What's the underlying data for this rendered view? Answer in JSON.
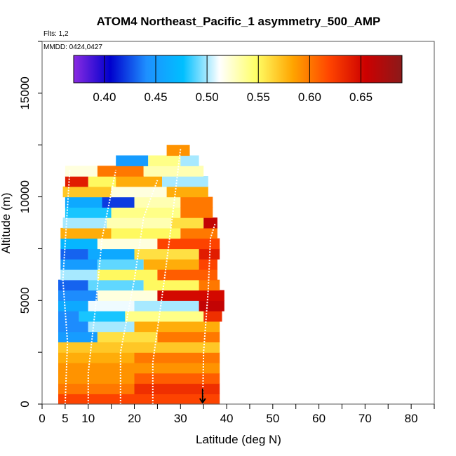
{
  "chart_data": {
    "type": "heatmap",
    "title": "ATOM4 Northeast_Pacific_1 asymmetry_500_AMP",
    "flights_label": "Flts: 1,2",
    "date_label": "MMDD: 0424,0427",
    "xlabel": "Latitude (deg N)",
    "ylabel": "Altitude (m)",
    "xlim": [
      0,
      85
    ],
    "ylim": [
      0,
      17500
    ],
    "x_ticks": [
      0,
      5,
      10,
      20,
      30,
      40,
      50,
      60,
      70,
      80
    ],
    "y_ticks": [
      0,
      5000,
      10000,
      15000
    ],
    "colorbar": {
      "range": [
        0.37,
        0.69
      ],
      "ticks": [
        0.4,
        0.45,
        0.5,
        0.55,
        0.6,
        0.65
      ],
      "tick_labels": [
        "0.40",
        "0.45",
        "0.50",
        "0.55",
        "0.60",
        "0.65"
      ],
      "colors": [
        "#8a2be2",
        "#0000cd",
        "#1e90ff",
        "#00bfff",
        "#ffffff",
        "#ffff66",
        "#ffa500",
        "#ff4500",
        "#cd0000",
        "#8b1a1a"
      ]
    },
    "marker": {
      "x": 34.8,
      "label": "arrow"
    },
    "rows": [
      {
        "alt": 250,
        "segs": [
          [
            3.5,
            38.5,
            0.62
          ]
        ]
      },
      {
        "alt": 750,
        "segs": [
          [
            3.5,
            10,
            0.6
          ],
          [
            10,
            20,
            0.6
          ],
          [
            20,
            38.5,
            0.63
          ]
        ]
      },
      {
        "alt": 1250,
        "segs": [
          [
            3.5,
            20,
            0.59
          ],
          [
            20,
            38.5,
            0.61
          ]
        ]
      },
      {
        "alt": 1750,
        "segs": [
          [
            3.5,
            38.5,
            0.59
          ]
        ]
      },
      {
        "alt": 2250,
        "segs": [
          [
            3.5,
            20,
            0.58
          ],
          [
            20,
            38.5,
            0.6
          ]
        ]
      },
      {
        "alt": 2750,
        "segs": [
          [
            3.5,
            38.5,
            0.57
          ]
        ]
      },
      {
        "alt": 3250,
        "segs": [
          [
            3.5,
            12,
            0.45
          ],
          [
            12,
            25,
            0.56
          ],
          [
            25,
            38.5,
            0.6
          ]
        ]
      },
      {
        "alt": 3750,
        "segs": [
          [
            3.5,
            10,
            0.44
          ],
          [
            10,
            20,
            0.5
          ],
          [
            20,
            38.5,
            0.58
          ]
        ]
      },
      {
        "alt": 4250,
        "segs": [
          [
            3.5,
            8,
            0.44
          ],
          [
            8,
            18,
            0.48
          ],
          [
            18,
            35,
            0.54
          ],
          [
            35,
            39,
            0.63
          ]
        ]
      },
      {
        "alt": 4750,
        "segs": [
          [
            3.5,
            10,
            0.46
          ],
          [
            10,
            20,
            0.51
          ],
          [
            20,
            34,
            0.5
          ],
          [
            34,
            39.5,
            0.66
          ]
        ]
      },
      {
        "alt": 5250,
        "segs": [
          [
            3.5,
            12,
            0.44
          ],
          [
            12,
            25,
            0.52
          ],
          [
            25,
            39.5,
            0.65
          ]
        ]
      },
      {
        "alt": 5750,
        "segs": [
          [
            3.5,
            10,
            0.43
          ],
          [
            10,
            22,
            0.49
          ],
          [
            22,
            34,
            0.55
          ],
          [
            34,
            38.5,
            0.6
          ]
        ]
      },
      {
        "alt": 6250,
        "segs": [
          [
            4,
            12,
            0.5
          ],
          [
            12,
            25,
            0.55
          ],
          [
            25,
            38,
            0.61
          ]
        ]
      },
      {
        "alt": 6750,
        "segs": [
          [
            4,
            12,
            0.45
          ],
          [
            12,
            22,
            0.49
          ],
          [
            22,
            34,
            0.58
          ],
          [
            34,
            38,
            0.62
          ]
        ]
      },
      {
        "alt": 7250,
        "segs": [
          [
            4,
            10,
            0.43
          ],
          [
            10,
            20,
            0.46
          ],
          [
            20,
            34,
            0.56
          ],
          [
            34,
            38.5,
            0.64
          ]
        ]
      },
      {
        "alt": 7750,
        "segs": [
          [
            4,
            12,
            0.47
          ],
          [
            12,
            25,
            0.52
          ],
          [
            25,
            38.5,
            0.62
          ]
        ]
      },
      {
        "alt": 8250,
        "segs": [
          [
            4,
            15,
            0.58
          ],
          [
            15,
            30,
            0.55
          ],
          [
            30,
            38,
            0.6
          ]
        ]
      },
      {
        "alt": 8750,
        "segs": [
          [
            4.5,
            14,
            0.5
          ],
          [
            14,
            28,
            0.53
          ],
          [
            28,
            35,
            0.56
          ],
          [
            35,
            38,
            0.66
          ]
        ]
      },
      {
        "alt": 9250,
        "segs": [
          [
            5,
            15,
            0.48
          ],
          [
            15,
            30,
            0.54
          ],
          [
            30,
            37,
            0.6
          ]
        ]
      },
      {
        "alt": 9750,
        "segs": [
          [
            5,
            13,
            0.46
          ],
          [
            13,
            20,
            0.42
          ],
          [
            20,
            30,
            0.53
          ],
          [
            30,
            37,
            0.6
          ]
        ]
      },
      {
        "alt": 10250,
        "segs": [
          [
            4.5,
            15,
            0.57
          ],
          [
            15,
            27,
            0.52
          ],
          [
            27,
            36,
            0.58
          ]
        ]
      },
      {
        "alt": 10750,
        "segs": [
          [
            5,
            10,
            0.64
          ],
          [
            10,
            16,
            0.55
          ],
          [
            16,
            26,
            0.58
          ],
          [
            26,
            36,
            0.5
          ]
        ]
      },
      {
        "alt": 11250,
        "segs": [
          [
            5,
            12,
            0.52
          ],
          [
            12,
            22,
            0.6
          ],
          [
            22,
            35,
            0.53
          ]
        ]
      },
      {
        "alt": 11750,
        "segs": [
          [
            16,
            23,
            0.45
          ],
          [
            23,
            30,
            0.54
          ],
          [
            30,
            34,
            0.5
          ]
        ]
      },
      {
        "alt": 12250,
        "segs": [
          [
            27,
            32,
            0.59
          ]
        ]
      }
    ],
    "profiles": [
      [
        [
          5,
          0
        ],
        [
          5.5,
          3000
        ],
        [
          4.5,
          6000
        ],
        [
          5.5,
          9500
        ],
        [
          6,
          11300
        ]
      ],
      [
        [
          10,
          0
        ],
        [
          10,
          1500
        ],
        [
          11.5,
          4500
        ],
        [
          13,
          8000
        ],
        [
          16,
          11300
        ]
      ],
      [
        [
          17,
          0
        ],
        [
          17,
          2500
        ],
        [
          20,
          6000
        ],
        [
          22,
          9000
        ],
        [
          25,
          10800
        ]
      ],
      [
        [
          24,
          0
        ],
        [
          24,
          2000
        ],
        [
          26.5,
          6000
        ],
        [
          28.5,
          9500
        ],
        [
          30,
          12300
        ]
      ],
      [
        [
          34.8,
          0
        ],
        [
          35,
          2500
        ],
        [
          36,
          5500
        ],
        [
          36.5,
          8000
        ],
        [
          37.5,
          8700
        ]
      ]
    ]
  }
}
